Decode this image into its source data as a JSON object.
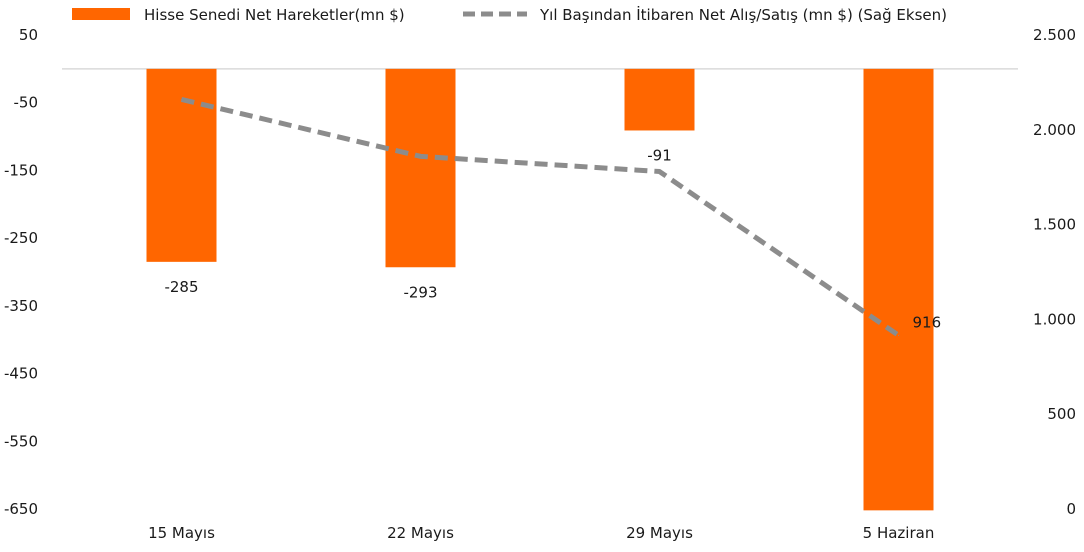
{
  "chart_data": {
    "type": "bar",
    "categories": [
      "15 Mayıs",
      "22 Mayıs",
      "29 Mayıs",
      "5 Haziran"
    ],
    "series": [
      {
        "name": "Hisse Senedi Net Hareketler(mn $)",
        "type": "bar",
        "axis": "left",
        "color": "#FF6600",
        "values": [
          -285,
          -293,
          -91,
          -652
        ],
        "labels": [
          "-285",
          "-293",
          "-91",
          ""
        ]
      },
      {
        "name": "Yıl Başından İtibaren Net Alış/Satış (mn $) (Sağ Eksen)",
        "type": "line",
        "axis": "right",
        "color": "#8C8C8C",
        "style": "dashed",
        "values": [
          2160,
          1860,
          1780,
          916
        ],
        "labels": [
          "",
          "",
          "",
          "916"
        ]
      }
    ],
    "left_axis": {
      "ylim": [
        -650,
        50
      ],
      "ticks": [
        50,
        -50,
        -150,
        -250,
        -350,
        -450,
        -550,
        -650
      ],
      "tick_labels": [
        "50",
        "-50",
        "-150",
        "-250",
        "-350",
        "-450",
        "-550",
        "-650"
      ]
    },
    "right_axis": {
      "ylim": [
        0,
        2500
      ],
      "ticks": [
        2500,
        2000,
        1500,
        1000,
        500,
        0
      ],
      "tick_labels": [
        "2.500",
        "2.000",
        "1.500",
        "1.000",
        "500",
        "0"
      ]
    },
    "zero_line": true,
    "grid": false,
    "legend_position": "top"
  }
}
